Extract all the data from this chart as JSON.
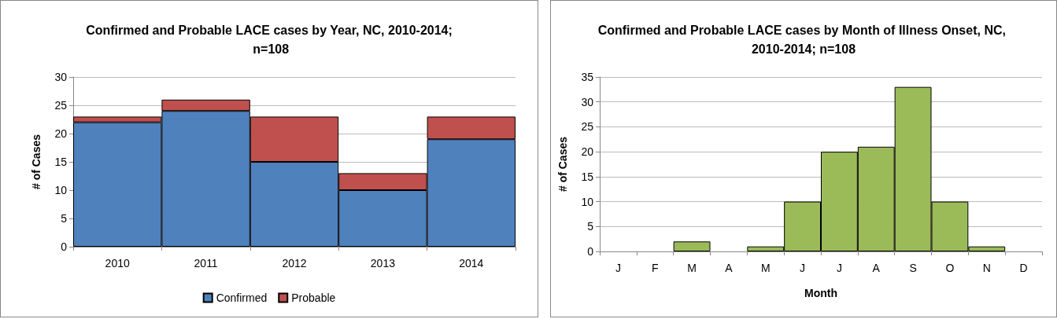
{
  "chart_data": [
    {
      "type": "bar",
      "title": "Confirmed and Probable LACE cases by Year, NC, 2010-2014; n=108",
      "ylabel": "# of Cases",
      "categories": [
        "2010",
        "2011",
        "2012",
        "2013",
        "2014"
      ],
      "stacked": true,
      "series": [
        {
          "name": "Confirmed",
          "color": "#4f81bd",
          "values": [
            22,
            24,
            15,
            10,
            19
          ]
        },
        {
          "name": "Probable",
          "color": "#c0504d",
          "values": [
            1,
            2,
            8,
            3,
            4
          ]
        }
      ],
      "ylim": [
        0,
        30
      ],
      "yticks": [
        0,
        5,
        10,
        15,
        20,
        25,
        30
      ],
      "grid": "y",
      "legend": "bottom"
    },
    {
      "type": "bar",
      "title": "Confirmed and Probable LACE cases by Month of Illness Onset, NC, 2010-2014; n=108",
      "xlabel": "Month",
      "ylabel": "# of Cases",
      "categories": [
        "J",
        "F",
        "M",
        "A",
        "M",
        "J",
        "J",
        "A",
        "S",
        "O",
        "N",
        "D"
      ],
      "values": [
        0,
        0,
        2,
        0,
        1,
        10,
        20,
        21,
        33,
        10,
        1,
        0
      ],
      "color": "#9bbb59",
      "ylim": [
        0,
        35
      ],
      "yticks": [
        0,
        5,
        10,
        15,
        20,
        25,
        30,
        35
      ],
      "grid": "y"
    }
  ]
}
